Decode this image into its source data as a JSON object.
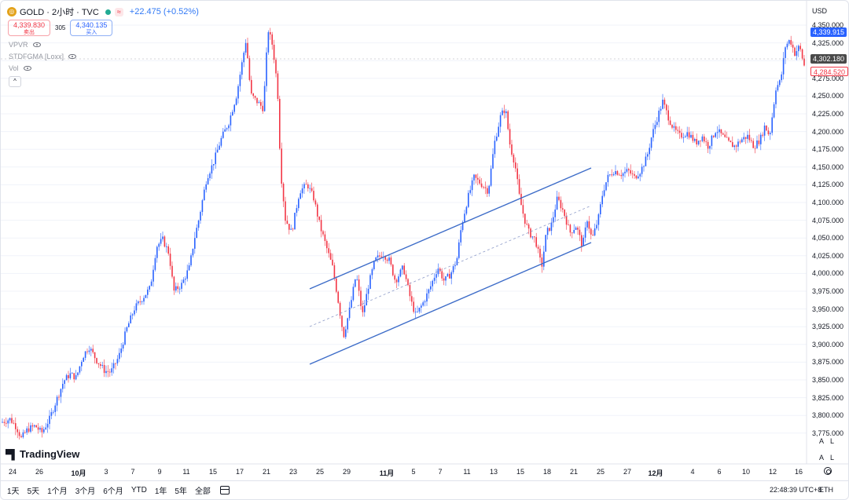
{
  "legend": {
    "symbol_icon": "gold-coin-icon",
    "title": "GOLD · 2小时 · TVC",
    "change": "+22.475 (+0.52%)",
    "market_badge": "≈"
  },
  "bid_ask": {
    "sell_price": "4,339.830",
    "sell_label": "卖出",
    "spread": "305",
    "buy_price": "4,340.135",
    "buy_label": "买入"
  },
  "indicators": [
    {
      "label": "VPVR"
    },
    {
      "label": "STDFGMA [Loxx]"
    },
    {
      "label": "Vol"
    }
  ],
  "price_axis": {
    "currency": "USD",
    "ticks": [
      "4,350.000",
      "4,325.000",
      "4,300.000",
      "4,275.000",
      "4,250.000",
      "4,225.000",
      "4,200.000",
      "4,175.000",
      "4,150.000",
      "4,125.000",
      "4,100.000",
      "4,075.000",
      "4,050.000",
      "4,025.000",
      "4,000.000",
      "3,975.000",
      "3,950.000",
      "3,925.000",
      "3,900.000",
      "3,875.000",
      "3,850.000",
      "3,825.000",
      "3,800.000",
      "3,775.000"
    ],
    "badge_buy": "4,339.915",
    "badge_current": "4,302.180",
    "badge_sell": "4,284.520"
  },
  "time_axis": {
    "ticks": [
      {
        "label": "24",
        "bold": false
      },
      {
        "label": "26",
        "bold": false
      },
      {
        "label": "10月",
        "bold": true
      },
      {
        "label": "3",
        "bold": false
      },
      {
        "label": "7",
        "bold": false
      },
      {
        "label": "9",
        "bold": false
      },
      {
        "label": "11",
        "bold": false
      },
      {
        "label": "15",
        "bold": false
      },
      {
        "label": "17",
        "bold": false
      },
      {
        "label": "21",
        "bold": false
      },
      {
        "label": "23",
        "bold": false
      },
      {
        "label": "25",
        "bold": false
      },
      {
        "label": "29",
        "bold": false
      },
      {
        "label": "11月",
        "bold": true
      },
      {
        "label": "5",
        "bold": false
      },
      {
        "label": "7",
        "bold": false
      },
      {
        "label": "11",
        "bold": false
      },
      {
        "label": "13",
        "bold": false
      },
      {
        "label": "15",
        "bold": false
      },
      {
        "label": "18",
        "bold": false
      },
      {
        "label": "21",
        "bold": false
      },
      {
        "label": "25",
        "bold": false
      },
      {
        "label": "27",
        "bold": false
      },
      {
        "label": "12月",
        "bold": true
      },
      {
        "label": "4",
        "bold": false
      },
      {
        "label": "6",
        "bold": false
      },
      {
        "label": "10",
        "bold": false
      },
      {
        "label": "12",
        "bold": false
      },
      {
        "label": "16",
        "bold": false
      }
    ]
  },
  "watermark": "TradingView",
  "ranges": [
    "1天",
    "5天",
    "1个月",
    "3个月",
    "6个月",
    "YTD",
    "1年",
    "5年",
    "全部"
  ],
  "time_readout": "22:48:39 UTC+8",
  "timezone_label": "ETH",
  "axis_controls": "A L",
  "colors": {
    "up": "#2962ff",
    "down": "#f23645",
    "channel": "#3d6cc8",
    "grid": "#f0f3fa"
  },
  "chart_data": {
    "type": "candlestick",
    "ylim": [
      3750,
      4362
    ],
    "price_path": [
      [
        0,
        3785
      ],
      [
        12,
        3790
      ],
      [
        20,
        3778
      ],
      [
        26,
        3762
      ],
      [
        34,
        3775
      ],
      [
        44,
        3780
      ],
      [
        52,
        3770
      ],
      [
        62,
        3790
      ],
      [
        70,
        3815
      ],
      [
        80,
        3845
      ],
      [
        88,
        3855
      ],
      [
        96,
        3850
      ],
      [
        104,
        3880
      ],
      [
        112,
        3895
      ],
      [
        122,
        3875
      ],
      [
        132,
        3860
      ],
      [
        140,
        3858
      ],
      [
        150,
        3880
      ],
      [
        160,
        3920
      ],
      [
        170,
        3950
      ],
      [
        180,
        3965
      ],
      [
        190,
        3980
      ],
      [
        198,
        4040
      ],
      [
        206,
        4050
      ],
      [
        214,
        4030
      ],
      [
        220,
        3975
      ],
      [
        230,
        3985
      ],
      [
        240,
        4010
      ],
      [
        246,
        4050
      ],
      [
        252,
        4080
      ],
      [
        262,
        4140
      ],
      [
        270,
        4160
      ],
      [
        280,
        4195
      ],
      [
        290,
        4220
      ],
      [
        300,
        4260
      ],
      [
        306,
        4300
      ],
      [
        312,
        4340
      ],
      [
        318,
        4260
      ],
      [
        326,
        4250
      ],
      [
        334,
        4240
      ],
      [
        340,
        4355
      ],
      [
        346,
        4330
      ],
      [
        352,
        4270
      ],
      [
        356,
        4150
      ],
      [
        362,
        4080
      ],
      [
        370,
        4060
      ],
      [
        380,
        4120
      ],
      [
        390,
        4130
      ],
      [
        398,
        4110
      ],
      [
        406,
        4070
      ],
      [
        414,
        4040
      ],
      [
        422,
        4010
      ],
      [
        428,
        3970
      ],
      [
        436,
        3910
      ],
      [
        444,
        3950
      ],
      [
        452,
        4000
      ],
      [
        460,
        3940
      ],
      [
        468,
        3985
      ],
      [
        476,
        4020
      ],
      [
        486,
        4030
      ],
      [
        494,
        4020
      ],
      [
        502,
        3990
      ],
      [
        512,
        4010
      ],
      [
        522,
        3960
      ],
      [
        528,
        3940
      ],
      [
        538,
        3960
      ],
      [
        546,
        3980
      ],
      [
        556,
        4010
      ],
      [
        564,
        3990
      ],
      [
        572,
        4000
      ],
      [
        580,
        4020
      ],
      [
        586,
        4070
      ],
      [
        594,
        4110
      ],
      [
        602,
        4140
      ],
      [
        612,
        4130
      ],
      [
        620,
        4120
      ],
      [
        628,
        4190
      ],
      [
        636,
        4230
      ],
      [
        642,
        4240
      ],
      [
        648,
        4185
      ],
      [
        654,
        4160
      ],
      [
        660,
        4110
      ],
      [
        666,
        4080
      ],
      [
        672,
        4060
      ],
      [
        680,
        4050
      ],
      [
        688,
        4010
      ],
      [
        694,
        4060
      ],
      [
        700,
        4070
      ],
      [
        708,
        4110
      ],
      [
        716,
        4090
      ],
      [
        724,
        4060
      ],
      [
        732,
        4070
      ],
      [
        740,
        4040
      ],
      [
        746,
        4080
      ],
      [
        752,
        4050
      ],
      [
        760,
        4080
      ],
      [
        766,
        4120
      ],
      [
        772,
        4140
      ],
      [
        780,
        4150
      ],
      [
        790,
        4145
      ],
      [
        798,
        4150
      ],
      [
        806,
        4140
      ],
      [
        814,
        4150
      ],
      [
        822,
        4170
      ],
      [
        828,
        4200
      ],
      [
        836,
        4230
      ],
      [
        842,
        4250
      ],
      [
        850,
        4225
      ],
      [
        856,
        4210
      ],
      [
        864,
        4200
      ],
      [
        874,
        4205
      ],
      [
        884,
        4190
      ],
      [
        892,
        4200
      ],
      [
        900,
        4185
      ],
      [
        910,
        4210
      ],
      [
        918,
        4200
      ],
      [
        926,
        4190
      ],
      [
        934,
        4185
      ],
      [
        942,
        4195
      ],
      [
        950,
        4200
      ],
      [
        958,
        4185
      ],
      [
        966,
        4195
      ],
      [
        972,
        4215
      ],
      [
        978,
        4200
      ],
      [
        986,
        4270
      ],
      [
        992,
        4280
      ],
      [
        998,
        4330
      ],
      [
        1004,
        4340
      ],
      [
        1010,
        4320
      ],
      [
        1016,
        4330
      ],
      [
        1022,
        4302
      ]
    ]
  }
}
